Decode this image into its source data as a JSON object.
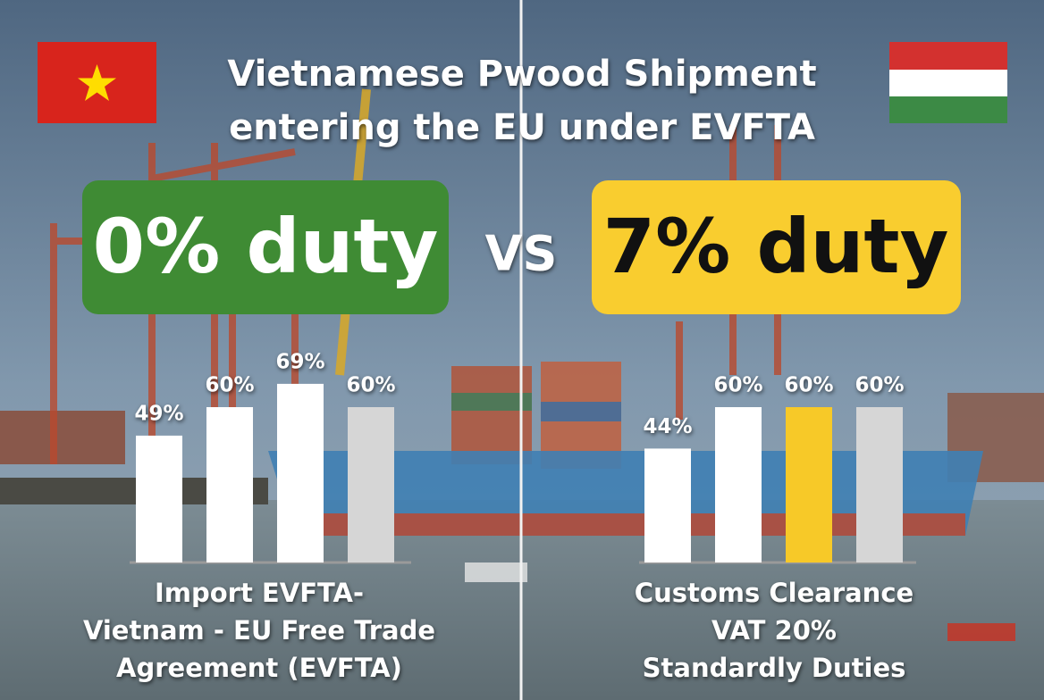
{
  "title": [
    "Vietnamese Pwood Shipment",
    "entering the EU under EVFTA"
  ],
  "left_badge": "0% duty",
  "vs": "VS",
  "right_badge": "7% duty",
  "chart_data": [
    {
      "type": "bar",
      "categories": [
        null,
        null,
        null,
        null
      ],
      "values": [
        49,
        60,
        69,
        60
      ],
      "value_labels": [
        "49%",
        "60%",
        "69%",
        "60%"
      ],
      "colors": [
        "#ffffff",
        "#ffffff",
        "#ffffff",
        "#d6d6d6"
      ],
      "caption": [
        "Import EVFTA-",
        "Vietnam - EU Free Trade",
        "Agreement (EVFTA)"
      ]
    },
    {
      "type": "bar",
      "categories": [
        null,
        null,
        null,
        null
      ],
      "values": [
        44,
        60,
        60,
        60
      ],
      "value_labels": [
        "44%",
        "60%",
        "60%",
        "60%"
      ],
      "colors": [
        "#ffffff",
        "#ffffff",
        "#f7c928",
        "#d6d6d6"
      ],
      "caption": [
        "Customs Clearance",
        "VAT 20%",
        "Standardly Duties"
      ]
    }
  ]
}
